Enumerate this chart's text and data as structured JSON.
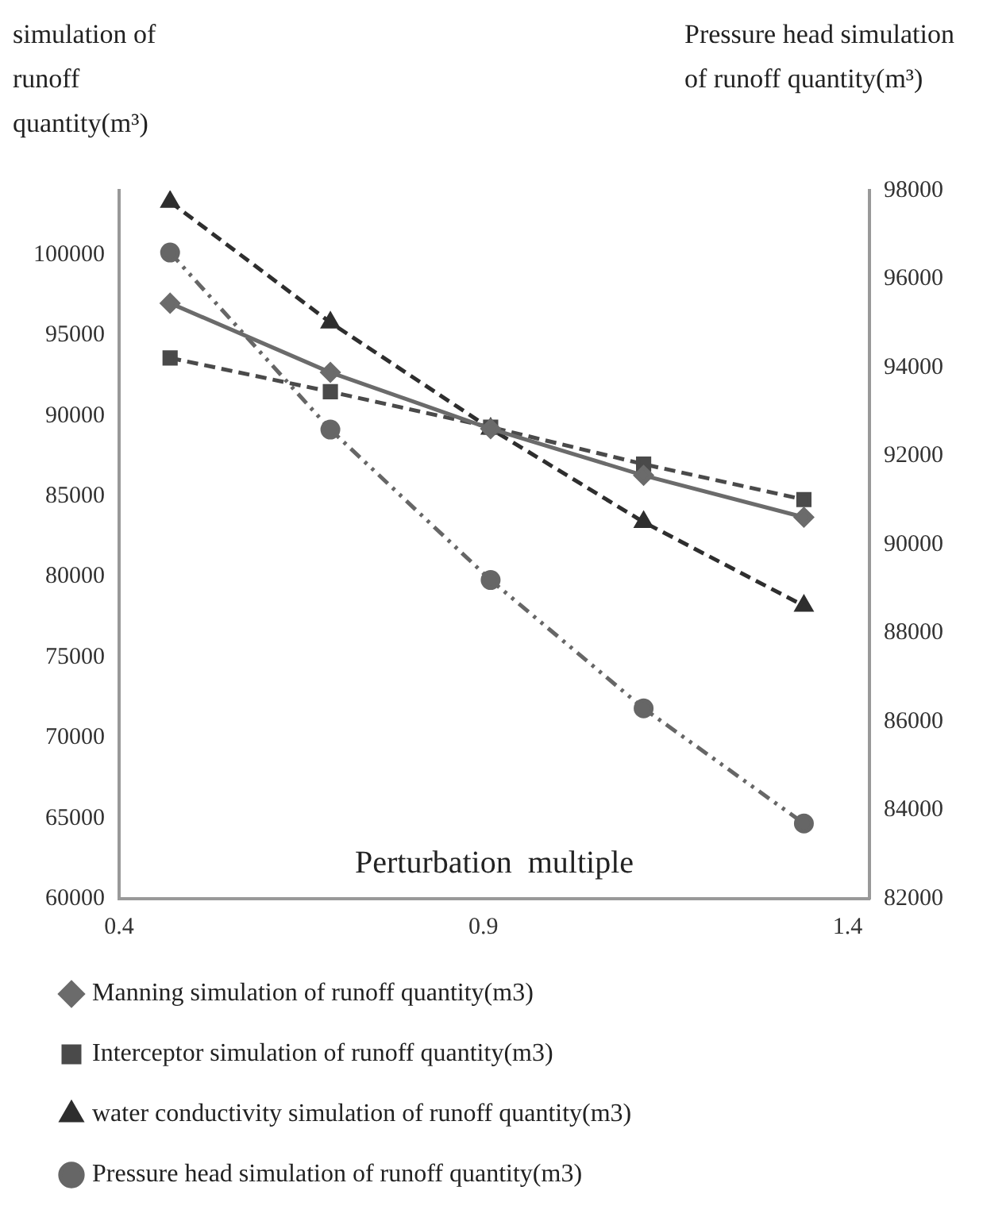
{
  "chart_data": {
    "type": "line",
    "xlabel": "Perturbation  multiple",
    "ylabel": "simulation of runoff quantity(m³)",
    "y2label": "Pressure head simulation of runoff quantity(m³)",
    "x": [
      0.47,
      0.69,
      0.91,
      1.12,
      1.34
    ],
    "xlim": [
      0.4,
      1.43
    ],
    "xticks": [
      0.4,
      0.9,
      1.4
    ],
    "ylim": [
      60000,
      104000
    ],
    "yticks": [
      60000,
      65000,
      70000,
      75000,
      80000,
      85000,
      90000,
      95000,
      100000
    ],
    "y2lim": [
      82000,
      98000
    ],
    "y2ticks": [
      82000,
      84000,
      86000,
      88000,
      90000,
      92000,
      94000,
      96000,
      98000
    ],
    "grid": false,
    "legend": "bottom",
    "series": [
      {
        "name": "Manning simulation of runoff quantity(m3)",
        "color": "#6b6b6b",
        "marker": "diamond",
        "line_style": "solid",
        "values": [
          97000,
          92700,
          89200,
          86300,
          83700
        ]
      },
      {
        "name": "Interceptor simulation of runoff quantity(m3)",
        "color": "#4a4a4a",
        "marker": "square",
        "line_style": "dashed",
        "values": [
          93600,
          91500,
          89300,
          87000,
          84800
        ]
      },
      {
        "name": "water conductivity simulation of runoff quantity(m3)",
        "color": "#2e2e2e",
        "marker": "triangle",
        "line_style": "dashed",
        "values": [
          103300,
          95800,
          89200,
          83400,
          78200
        ]
      },
      {
        "name": "Pressure head simulation of runoff quantity(m3)",
        "color": "#666666",
        "marker": "circle",
        "line_style": "dotted",
        "axis": "y2",
        "values": [
          96600,
          92600,
          89200,
          86300,
          83700
        ]
      }
    ]
  }
}
